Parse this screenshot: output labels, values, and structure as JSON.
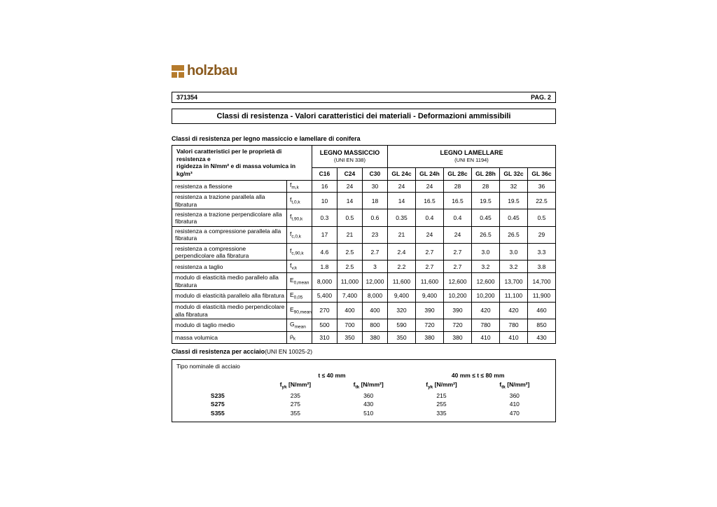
{
  "brand": {
    "name": "holzbau",
    "logo_color": "#b57b2c",
    "text_color": "#8a5a1e"
  },
  "doc": {
    "id": "371354",
    "page_label": "PAG. 2",
    "title": "Classi di resistenza - Valori caratteristici dei materiali - Deformazioni ammissibili"
  },
  "wood": {
    "section_heading": "Classi di resistenza per legno massiccio e lamellare di conifera",
    "desc_line1": "Valori caratteristici per le proprietà di resistenza e",
    "desc_line2": "rigidezza in N/mm² e di massa volumica in kg/m³",
    "group1_title": "LEGNO MASSICCIO",
    "group1_sub": "(UNI EN 338)",
    "group2_title": "LEGNO LAMELLARE",
    "group2_sub": "(UNI EN 1194)",
    "cols": [
      "C16",
      "C24",
      "C30",
      "GL 24c",
      "GL 24h",
      "GL 28c",
      "GL 28h",
      "GL 32c",
      "GL 36c"
    ],
    "rows": [
      {
        "label": "resistenza a flessione",
        "sym_base": "f",
        "sym_sub": "m,k",
        "v": [
          "16",
          "24",
          "30",
          "24",
          "24",
          "28",
          "28",
          "32",
          "36"
        ]
      },
      {
        "label": "resistenza a trazione parallela alla fibratura",
        "sym_base": "f",
        "sym_sub": "t,0,k",
        "v": [
          "10",
          "14",
          "18",
          "14",
          "16.5",
          "16.5",
          "19.5",
          "19.5",
          "22.5"
        ]
      },
      {
        "label": "resistenza a trazione perpendicolare alla fibratura",
        "sym_base": "f",
        "sym_sub": "t,90,k",
        "v": [
          "0.3",
          "0.5",
          "0.6",
          "0.35",
          "0.4",
          "0.4",
          "0.45",
          "0.45",
          "0.5"
        ]
      },
      {
        "label": "resistenza a compressione parallela alla fibratura",
        "sym_base": "f",
        "sym_sub": "c,0,k",
        "v": [
          "17",
          "21",
          "23",
          "21",
          "24",
          "24",
          "26.5",
          "26.5",
          "29"
        ]
      },
      {
        "label": "resistenza a compressione perpendicolare alla fibratura",
        "sym_base": "f",
        "sym_sub": "c,90,k",
        "v": [
          "4.6",
          "2.5",
          "2.7",
          "2.4",
          "2.7",
          "2.7",
          "3.0",
          "3.0",
          "3.3"
        ]
      },
      {
        "label": "resistenza a taglio",
        "sym_base": "f",
        "sym_sub": "v,k",
        "v": [
          "1.8",
          "2.5",
          "3",
          "2.2",
          "2.7",
          "2.7",
          "3.2",
          "3.2",
          "3.8"
        ]
      },
      {
        "label": "modulo di elasticità medio parallelo alla fibratura",
        "sym_base": "E",
        "sym_sub": "0,mean",
        "v": [
          "8,000",
          "11,000",
          "12,000",
          "11,600",
          "11,600",
          "12,600",
          "12,600",
          "13,700",
          "14,700"
        ]
      },
      {
        "label": "modulo di elasticità parallelo alla fibratura",
        "sym_base": "E",
        "sym_sub": "0,05",
        "v": [
          "5,400",
          "7,400",
          "8,000",
          "9,400",
          "9,400",
          "10,200",
          "10,200",
          "11,100",
          "11,900"
        ]
      },
      {
        "label": "modulo di elasticità medio perpendicolare alla fibratura",
        "sym_base": "E",
        "sym_sub": "90,mean",
        "v": [
          "270",
          "400",
          "400",
          "320",
          "390",
          "390",
          "420",
          "420",
          "460"
        ]
      },
      {
        "label": "modulo di taglio medio",
        "sym_base": "G",
        "sym_sub": "mean",
        "v": [
          "500",
          "700",
          "800",
          "590",
          "720",
          "720",
          "780",
          "780",
          "850"
        ]
      },
      {
        "label": "massa volumica",
        "sym_base": "ρ",
        "sym_sub": "k",
        "v": [
          "310",
          "350",
          "380",
          "350",
          "380",
          "380",
          "410",
          "410",
          "430"
        ]
      }
    ],
    "group_breaks": [
      3,
      6,
      10
    ]
  },
  "steel": {
    "section_heading": "Classi di resistenza per acciaio",
    "section_heading_ref": "(UNI EN 10025-2)",
    "block_title": "Tipo nominale di acciaio",
    "range1": "t ≤ 40 mm",
    "range2": "40 mm ≤ t ≤ 80 mm",
    "col_fy": "f_yk [N/mm²]",
    "col_fu": "f_tk [N/mm²]",
    "rows": [
      {
        "name": "S235",
        "fy1": "235",
        "fu1": "360",
        "fy2": "215",
        "fu2": "360"
      },
      {
        "name": "S275",
        "fy1": "275",
        "fu1": "430",
        "fy2": "255",
        "fu2": "410"
      },
      {
        "name": "S355",
        "fy1": "355",
        "fu1": "510",
        "fy2": "335",
        "fu2": "470"
      }
    ]
  }
}
